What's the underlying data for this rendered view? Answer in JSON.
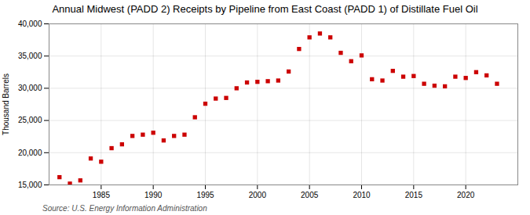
{
  "chart_data": {
    "type": "scatter",
    "title": "Annual Midwest (PADD 2) Receipts by Pipeline from East Coast (PADD 1) of Distillate Fuel Oil",
    "ylabel": "Thousand Barrels",
    "source": "Source: U.S. Energy Information Administration",
    "x": [
      1981,
      1982,
      1983,
      1984,
      1985,
      1986,
      1987,
      1988,
      1989,
      1990,
      1991,
      1992,
      1993,
      1994,
      1995,
      1996,
      1997,
      1998,
      1999,
      2000,
      2001,
      2002,
      2003,
      2004,
      2005,
      2006,
      2007,
      2008,
      2009,
      2010,
      2011,
      2012,
      2013,
      2014,
      2015,
      2016,
      2017,
      2018,
      2019,
      2020,
      2021,
      2022,
      2023
    ],
    "values": [
      16200,
      15200,
      15700,
      19100,
      18600,
      20700,
      21300,
      22600,
      22800,
      23100,
      21900,
      22600,
      22800,
      25500,
      27600,
      28400,
      28500,
      30000,
      30900,
      31000,
      31100,
      31200,
      32600,
      36100,
      37900,
      38500,
      37900,
      35500,
      34200,
      35100,
      31400,
      31200,
      32700,
      31800,
      31900,
      30700,
      30400,
      30300,
      31800,
      31600,
      32500,
      32000,
      30700
    ],
    "color": "#cc0000",
    "marker": "square",
    "grid": true,
    "xlim": [
      1980,
      2025
    ],
    "xticks": [
      1985,
      1990,
      1995,
      2000,
      2005,
      2010,
      2015,
      2020
    ],
    "ylim": [
      15000,
      40000
    ],
    "yticks": [
      {
        "value": 15000,
        "label": "15,000"
      },
      {
        "value": 20000,
        "label": "20,000"
      },
      {
        "value": 25000,
        "label": "25,000"
      },
      {
        "value": 30000,
        "label": "30,000"
      },
      {
        "value": 35000,
        "label": "35,000"
      },
      {
        "value": 40000,
        "label": "40,000"
      }
    ]
  }
}
